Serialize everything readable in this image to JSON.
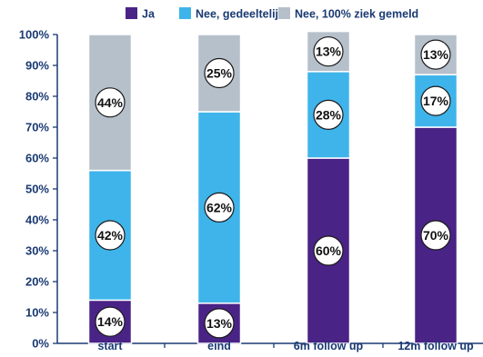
{
  "chart_data": {
    "type": "bar",
    "stacked": true,
    "title": "",
    "xlabel": "",
    "ylabel": "",
    "ylim": [
      0,
      100
    ],
    "y_ticks": [
      "0%",
      "10%",
      "20%",
      "30%",
      "40%",
      "50%",
      "60%",
      "70%",
      "80%",
      "90%",
      "100%"
    ],
    "categories": [
      "start",
      "eind",
      "6m follow up",
      "12m follow up"
    ],
    "series": [
      {
        "name": "Ja",
        "color": "#4a2386",
        "values": [
          14,
          13,
          60,
          70
        ],
        "labels": [
          "14%",
          "13%",
          "60%",
          "70%"
        ]
      },
      {
        "name": "Nee, gedeeltelijk",
        "color": "#3fb4ea",
        "values": [
          42,
          62,
          28,
          17
        ],
        "labels": [
          "42%",
          "62%",
          "28%",
          "17%"
        ]
      },
      {
        "name": "Nee, 100% ziek gemeld",
        "color": "#b5c0cb",
        "values": [
          44,
          25,
          13,
          13
        ],
        "labels": [
          "44%",
          "25%",
          "13%",
          "13%"
        ]
      }
    ],
    "legend_position": "top",
    "grid": false,
    "colors": {
      "axis_text": "#1a3a73",
      "axis_line": "#1a3a73",
      "bar_border": "#ffffff"
    }
  }
}
